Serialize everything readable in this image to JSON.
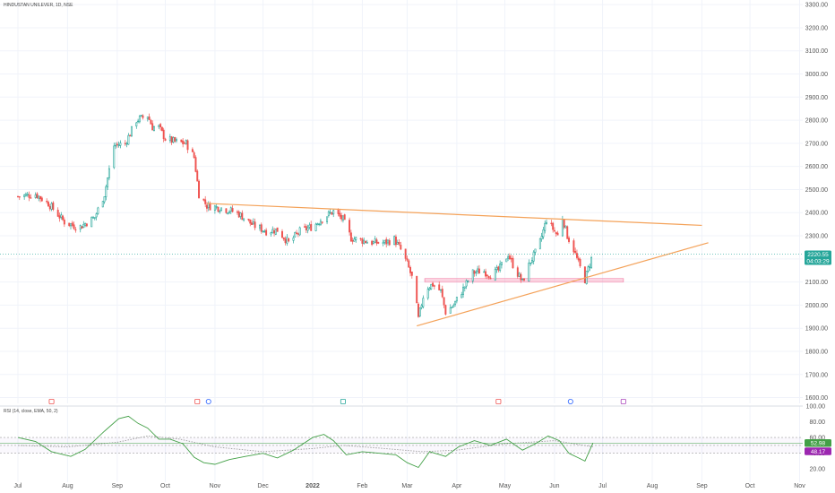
{
  "header": {
    "symbol_title": "HINDUSTAN UNILEVER, 1D, NSE"
  },
  "colors": {
    "up": "#26a69a",
    "down": "#ef5350",
    "trendline": "#f4a259",
    "support_zone": "#f48fb1",
    "rsi_line": "#43a047",
    "rsi_ma": "#9e9e9e",
    "price_tag": "#26a69a",
    "rsi_tag": "#43a047",
    "rsi_ma_tag": "#9c27b0",
    "grid": "#f0f3fa",
    "axis_text": "#555555"
  },
  "chart_data": [
    {
      "type": "candlestick",
      "panel": "price",
      "title": "HINDUSTAN UNILEVER, 1D, NSE",
      "x_axis": {
        "range": [
          "2021-07-01",
          "2022-11-08"
        ],
        "tick_labels": [
          "Jul",
          "Aug",
          "Sep",
          "Oct",
          "Nov",
          "Dec",
          "2022",
          "Feb",
          "Mar",
          "Apr",
          "May",
          "Jun",
          "Jul",
          "Aug",
          "Sep",
          "Oct",
          "Nov"
        ],
        "tick_dates": [
          "2021-07-01",
          "2021-08-01",
          "2021-09-01",
          "2021-10-01",
          "2021-11-01",
          "2021-12-01",
          "2022-01-01",
          "2022-02-01",
          "2022-03-01",
          "2022-04-01",
          "2022-05-01",
          "2022-06-01",
          "2022-07-01",
          "2022-08-01",
          "2022-09-01",
          "2022-10-01",
          "2022-11-01"
        ]
      },
      "y_axis": {
        "range": [
          1575,
          3320
        ],
        "tick_labels": [
          "1600.00",
          "1700.00",
          "1800.00",
          "1900.00",
          "2000.00",
          "2100.00",
          "2200.00",
          "2300.00",
          "2400.00",
          "2500.00",
          "2600.00",
          "2700.00",
          "2800.00",
          "2900.00",
          "3000.00",
          "3100.00",
          "3200.00",
          "3300.00"
        ],
        "tick_values": [
          1600,
          1700,
          1800,
          1900,
          2000,
          2100,
          2200,
          2300,
          2400,
          2500,
          2600,
          2700,
          2800,
          2900,
          3000,
          3100,
          3200,
          3300
        ]
      },
      "price_path": [
        {
          "date": "2021-07-01",
          "close": 2470
        },
        {
          "date": "2021-07-12",
          "close": 2480
        },
        {
          "date": "2021-07-20",
          "close": 2440
        },
        {
          "date": "2021-07-30",
          "close": 2360
        },
        {
          "date": "2021-08-08",
          "close": 2335
        },
        {
          "date": "2021-08-18",
          "close": 2380
        },
        {
          "date": "2021-08-24",
          "close": 2480
        },
        {
          "date": "2021-08-30",
          "close": 2690
        },
        {
          "date": "2021-09-06",
          "close": 2700
        },
        {
          "date": "2021-09-13",
          "close": 2800
        },
        {
          "date": "2021-09-20",
          "close": 2820
        },
        {
          "date": "2021-09-23",
          "close": 2770
        },
        {
          "date": "2021-09-27",
          "close": 2770
        },
        {
          "date": "2021-10-01",
          "close": 2720
        },
        {
          "date": "2021-10-08",
          "close": 2705
        },
        {
          "date": "2021-10-14",
          "close": 2700
        },
        {
          "date": "2021-10-19",
          "close": 2640
        },
        {
          "date": "2021-10-22",
          "close": 2480
        },
        {
          "date": "2021-10-27",
          "close": 2430
        },
        {
          "date": "2021-11-05",
          "close": 2420
        },
        {
          "date": "2021-11-15",
          "close": 2400
        },
        {
          "date": "2021-11-25",
          "close": 2345
        },
        {
          "date": "2021-12-03",
          "close": 2320
        },
        {
          "date": "2021-12-10",
          "close": 2325
        },
        {
          "date": "2021-12-17",
          "close": 2270
        },
        {
          "date": "2021-12-24",
          "close": 2320
        },
        {
          "date": "2022-01-01",
          "close": 2340
        },
        {
          "date": "2022-01-08",
          "close": 2380
        },
        {
          "date": "2022-01-14",
          "close": 2405
        },
        {
          "date": "2022-01-20",
          "close": 2370
        },
        {
          "date": "2022-01-25",
          "close": 2290
        },
        {
          "date": "2022-02-01",
          "close": 2280
        },
        {
          "date": "2022-02-08",
          "close": 2270
        },
        {
          "date": "2022-02-15",
          "close": 2270
        },
        {
          "date": "2022-02-21",
          "close": 2285
        },
        {
          "date": "2022-02-25",
          "close": 2240
        },
        {
          "date": "2022-03-01",
          "close": 2180
        },
        {
          "date": "2022-03-05",
          "close": 2100
        },
        {
          "date": "2022-03-08",
          "close": 1940
        },
        {
          "date": "2022-03-12",
          "close": 2070
        },
        {
          "date": "2022-03-17",
          "close": 2090
        },
        {
          "date": "2022-03-22",
          "close": 2060
        },
        {
          "date": "2022-03-25",
          "close": 1970
        },
        {
          "date": "2022-03-30",
          "close": 2000
        },
        {
          "date": "2022-04-05",
          "close": 2070
        },
        {
          "date": "2022-04-11",
          "close": 2140
        },
        {
          "date": "2022-04-17",
          "close": 2150
        },
        {
          "date": "2022-04-22",
          "close": 2130
        },
        {
          "date": "2022-04-27",
          "close": 2150
        },
        {
          "date": "2022-05-03",
          "close": 2220
        },
        {
          "date": "2022-05-07",
          "close": 2160
        },
        {
          "date": "2022-05-12",
          "close": 2100
        },
        {
          "date": "2022-05-17",
          "close": 2190
        },
        {
          "date": "2022-05-22",
          "close": 2250
        },
        {
          "date": "2022-05-27",
          "close": 2370
        },
        {
          "date": "2022-05-31",
          "close": 2330
        },
        {
          "date": "2022-06-03",
          "close": 2300
        },
        {
          "date": "2022-06-06",
          "close": 2380
        },
        {
          "date": "2022-06-09",
          "close": 2300
        },
        {
          "date": "2022-06-13",
          "close": 2240
        },
        {
          "date": "2022-06-16",
          "close": 2180
        },
        {
          "date": "2022-06-20",
          "close": 2110
        },
        {
          "date": "2022-06-23",
          "close": 2180
        },
        {
          "date": "2022-06-25",
          "close": 2220
        }
      ],
      "last_price": {
        "value": 2220.55,
        "label": "2220.55",
        "countdown": "04:03:29"
      },
      "drawings": {
        "resistance_line": {
          "from": {
            "date": "2021-10-27",
            "price": 2440
          },
          "to": {
            "date": "2022-09-01",
            "price": 2345
          }
        },
        "rising_support_line": {
          "from": {
            "date": "2022-03-07",
            "price": 1910
          },
          "to": {
            "date": "2022-09-05",
            "price": 2270
          }
        },
        "support_zone": {
          "from_date": "2022-03-12",
          "to_date": "2022-07-14",
          "price_low": 2100,
          "price_high": 2115
        }
      },
      "event_markers": [
        {
          "date": "2021-07-22",
          "kind": "earnings-down"
        },
        {
          "date": "2021-10-21",
          "kind": "earnings-down"
        },
        {
          "date": "2021-10-28",
          "kind": "dividend"
        },
        {
          "date": "2022-01-20",
          "kind": "earnings-up"
        },
        {
          "date": "2022-04-27",
          "kind": "earnings-down"
        },
        {
          "date": "2022-06-11",
          "kind": "dividend"
        },
        {
          "date": "2022-07-14",
          "kind": "split"
        }
      ]
    },
    {
      "type": "line",
      "panel": "rsi",
      "title": "RSI (14, close, EMA, 50, 2)",
      "y_axis": {
        "range": [
          10,
          100
        ],
        "tick_labels": [
          "20.00",
          "40.00",
          "60.00",
          "80.00",
          "100.00"
        ],
        "tick_values": [
          20,
          40,
          60,
          80,
          100
        ]
      },
      "bands": {
        "upper": 60,
        "middle": 50,
        "lower": 40
      },
      "series": [
        {
          "name": "RSI",
          "points": [
            {
              "date": "2021-07-01",
              "value": 60
            },
            {
              "date": "2021-07-12",
              "value": 55
            },
            {
              "date": "2021-07-22",
              "value": 42
            },
            {
              "date": "2021-08-03",
              "value": 36
            },
            {
              "date": "2021-08-12",
              "value": 45
            },
            {
              "date": "2021-08-24",
              "value": 68
            },
            {
              "date": "2021-09-02",
              "value": 84
            },
            {
              "date": "2021-09-08",
              "value": 87
            },
            {
              "date": "2021-09-14",
              "value": 78
            },
            {
              "date": "2021-09-20",
              "value": 72
            },
            {
              "date": "2021-09-27",
              "value": 58
            },
            {
              "date": "2021-10-04",
              "value": 58
            },
            {
              "date": "2021-10-12",
              "value": 52
            },
            {
              "date": "2021-10-19",
              "value": 35
            },
            {
              "date": "2021-10-25",
              "value": 28
            },
            {
              "date": "2021-11-01",
              "value": 26
            },
            {
              "date": "2021-11-10",
              "value": 32
            },
            {
              "date": "2021-11-20",
              "value": 36
            },
            {
              "date": "2021-12-01",
              "value": 40
            },
            {
              "date": "2021-12-10",
              "value": 34
            },
            {
              "date": "2021-12-20",
              "value": 44
            },
            {
              "date": "2022-01-01",
              "value": 60
            },
            {
              "date": "2022-01-08",
              "value": 64
            },
            {
              "date": "2022-01-14",
              "value": 56
            },
            {
              "date": "2022-01-22",
              "value": 38
            },
            {
              "date": "2022-02-01",
              "value": 42
            },
            {
              "date": "2022-02-12",
              "value": 40
            },
            {
              "date": "2022-02-22",
              "value": 38
            },
            {
              "date": "2022-03-01",
              "value": 28
            },
            {
              "date": "2022-03-08",
              "value": 22
            },
            {
              "date": "2022-03-15",
              "value": 42
            },
            {
              "date": "2022-03-25",
              "value": 36
            },
            {
              "date": "2022-04-02",
              "value": 48
            },
            {
              "date": "2022-04-12",
              "value": 56
            },
            {
              "date": "2022-04-22",
              "value": 50
            },
            {
              "date": "2022-05-02",
              "value": 58
            },
            {
              "date": "2022-05-12",
              "value": 44
            },
            {
              "date": "2022-05-20",
              "value": 52
            },
            {
              "date": "2022-05-28",
              "value": 62
            },
            {
              "date": "2022-06-04",
              "value": 56
            },
            {
              "date": "2022-06-10",
              "value": 40
            },
            {
              "date": "2022-06-16",
              "value": 34
            },
            {
              "date": "2022-06-20",
              "value": 30
            },
            {
              "date": "2022-06-25",
              "value": 52.98
            }
          ],
          "last_value": 52.98,
          "label": "52.98"
        },
        {
          "name": "EMA",
          "points": [
            {
              "date": "2021-07-01",
              "value": 50
            },
            {
              "date": "2021-08-01",
              "value": 48
            },
            {
              "date": "2021-09-01",
              "value": 54
            },
            {
              "date": "2021-09-20",
              "value": 62
            },
            {
              "date": "2021-10-10",
              "value": 58
            },
            {
              "date": "2021-11-01",
              "value": 48
            },
            {
              "date": "2021-12-01",
              "value": 42
            },
            {
              "date": "2022-01-01",
              "value": 46
            },
            {
              "date": "2022-01-20",
              "value": 50
            },
            {
              "date": "2022-02-15",
              "value": 46
            },
            {
              "date": "2022-03-10",
              "value": 42
            },
            {
              "date": "2022-04-01",
              "value": 44
            },
            {
              "date": "2022-05-01",
              "value": 52
            },
            {
              "date": "2022-06-01",
              "value": 56
            },
            {
              "date": "2022-06-25",
              "value": 48.17
            }
          ],
          "last_value": 48.17,
          "label": "48.17"
        }
      ]
    }
  ]
}
